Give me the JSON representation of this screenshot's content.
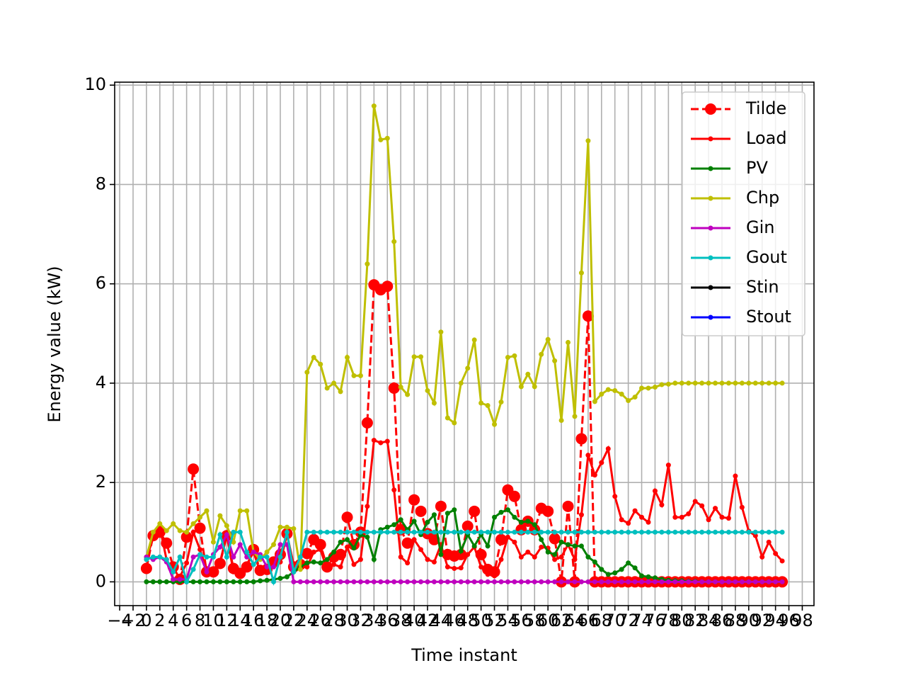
{
  "chart_data": {
    "type": "line",
    "xlabel": "Time instant",
    "ylabel": "Energy value (kW)",
    "x": [
      0,
      1,
      2,
      3,
      4,
      5,
      6,
      7,
      8,
      9,
      10,
      11,
      12,
      13,
      14,
      15,
      16,
      17,
      18,
      19,
      20,
      21,
      22,
      23,
      24,
      25,
      26,
      27,
      28,
      29,
      30,
      31,
      32,
      33,
      34,
      35,
      36,
      37,
      38,
      39,
      40,
      41,
      42,
      43,
      44,
      45,
      46,
      47,
      48,
      49,
      50,
      51,
      52,
      53,
      54,
      55,
      56,
      57,
      58,
      59,
      60,
      61,
      62,
      63,
      64,
      65,
      66,
      67,
      68,
      69,
      70,
      71,
      72,
      73,
      74,
      75,
      76,
      77,
      78,
      79,
      80,
      81,
      82,
      83,
      84,
      85,
      86,
      87,
      88,
      89,
      90,
      91,
      92,
      93,
      94,
      95
    ],
    "series": [
      {
        "name": "Tilde",
        "color": "#ff0000",
        "linestyle": "dashed",
        "marker_size": 8,
        "values": [
          0.27,
          0.93,
          1.0,
          0.78,
          0.3,
          0.05,
          0.9,
          2.27,
          1.08,
          0.2,
          0.2,
          0.37,
          0.93,
          0.27,
          0.17,
          0.3,
          0.65,
          0.23,
          0.25,
          0.4,
          0.55,
          0.97,
          0.3,
          0.35,
          0.57,
          0.85,
          0.75,
          0.3,
          0.5,
          0.55,
          1.3,
          0.75,
          1.0,
          3.2,
          5.98,
          5.88,
          5.95,
          3.9,
          1.05,
          0.78,
          1.65,
          1.42,
          0.97,
          0.85,
          1.52,
          0.55,
          0.52,
          0.55,
          1.12,
          1.42,
          0.55,
          0.25,
          0.2,
          0.85,
          1.85,
          1.72,
          1.05,
          1.22,
          1.05,
          1.48,
          1.42,
          0.87,
          0,
          1.52,
          0,
          2.88,
          5.35,
          0,
          0,
          0,
          0,
          0,
          0,
          0,
          0,
          0,
          0,
          0,
          0,
          0,
          0,
          0,
          0,
          0,
          0,
          0,
          0,
          0,
          0,
          0,
          0,
          0,
          0,
          0,
          0,
          0
        ]
      },
      {
        "name": "Load",
        "color": "#ff0000",
        "linestyle": "solid",
        "marker_size": 3.5,
        "values": [
          0.45,
          0.9,
          1.1,
          0.45,
          0.05,
          0.1,
          0.38,
          1.0,
          0.65,
          0.25,
          0.25,
          0.4,
          0.95,
          0.2,
          0.2,
          0.35,
          0.6,
          0.2,
          0.2,
          0.45,
          0.4,
          0.95,
          0.35,
          0.4,
          0.3,
          0.6,
          0.65,
          0.25,
          0.35,
          0.3,
          0.7,
          0.35,
          0.45,
          1.52,
          2.85,
          2.8,
          2.83,
          1.85,
          0.5,
          0.38,
          0.85,
          0.65,
          0.45,
          0.4,
          0.75,
          0.3,
          0.27,
          0.28,
          0.55,
          0.7,
          0.3,
          0.15,
          0.12,
          0.45,
          0.9,
          0.8,
          0.5,
          0.6,
          0.5,
          0.7,
          0.68,
          0.45,
          0.5,
          0.75,
          0.45,
          1.35,
          2.55,
          2.15,
          2.4,
          2.68,
          1.72,
          1.25,
          1.18,
          1.43,
          1.3,
          1.2,
          1.83,
          1.55,
          2.35,
          1.3,
          1.3,
          1.37,
          1.62,
          1.53,
          1.25,
          1.48,
          1.3,
          1.28,
          2.13,
          1.5,
          1.02,
          0.93,
          0.5,
          0.8,
          0.57,
          0.42
        ]
      },
      {
        "name": "PV",
        "color": "#008000",
        "linestyle": "solid",
        "marker_size": 3.5,
        "values": [
          0,
          0,
          0,
          0,
          0,
          0,
          0,
          0,
          0,
          0,
          0,
          0,
          0,
          0,
          0,
          0,
          0,
          0.02,
          0.03,
          0.05,
          0.07,
          0.1,
          0.2,
          0.3,
          0.38,
          0.4,
          0.38,
          0.45,
          0.6,
          0.8,
          0.85,
          0.68,
          0.95,
          0.9,
          0.45,
          1.05,
          1.1,
          1.15,
          1.25,
          1.05,
          1.22,
          0.95,
          1.2,
          1.35,
          0.55,
          1.38,
          1.45,
          0.62,
          0.95,
          0.72,
          0.95,
          0.72,
          1.3,
          1.4,
          1.45,
          1.3,
          1.2,
          1.22,
          1.15,
          0.85,
          0.6,
          0.55,
          0.8,
          0.75,
          0.72,
          0.72,
          0.5,
          0.4,
          0.25,
          0.15,
          0.18,
          0.25,
          0.38,
          0.28,
          0.12,
          0.1,
          0.08,
          0.05,
          0.03,
          0.02,
          0.02,
          0.01,
          0.01,
          0,
          0,
          0,
          0,
          0,
          0,
          0,
          0,
          0,
          0,
          0,
          0,
          0
        ]
      },
      {
        "name": "Chp",
        "color": "#bfbf00",
        "linestyle": "solid",
        "marker_size": 3.5,
        "values": [
          0.5,
          1.0,
          1.17,
          1.03,
          1.17,
          1.03,
          1.0,
          1.17,
          1.3,
          1.43,
          0.8,
          1.33,
          1.13,
          0.8,
          1.43,
          1.43,
          0.6,
          0.45,
          0.6,
          0.75,
          1.1,
          1.1,
          1.07,
          0.25,
          4.22,
          4.52,
          4.38,
          3.9,
          4.0,
          3.83,
          4.52,
          4.15,
          4.15,
          6.4,
          9.58,
          8.9,
          8.93,
          6.85,
          3.92,
          3.77,
          4.53,
          4.53,
          3.85,
          3.6,
          5.03,
          3.3,
          3.2,
          4.0,
          4.3,
          4.87,
          3.6,
          3.55,
          3.17,
          3.62,
          4.52,
          4.55,
          3.93,
          4.18,
          3.93,
          4.58,
          4.88,
          4.45,
          3.25,
          4.82,
          3.33,
          6.22,
          8.88,
          3.63,
          3.78,
          3.87,
          3.85,
          3.78,
          3.65,
          3.72,
          3.9,
          3.9,
          3.92,
          3.97,
          3.98,
          4.0,
          4.0,
          4.0,
          4.0,
          4.0,
          4.0,
          4.0,
          4.0,
          4.0,
          4.0,
          4.0,
          4.0,
          4.0,
          4.0,
          4.0,
          4.0,
          4.0
        ]
      },
      {
        "name": "Gin",
        "color": "#bf00bf",
        "linestyle": "solid",
        "marker_size": 3.5,
        "values": [
          0.5,
          0.45,
          0.5,
          0.4,
          0.05,
          0.05,
          0.05,
          0.5,
          0.55,
          0.2,
          0.55,
          0.7,
          0.95,
          0.5,
          0.75,
          0.5,
          0.6,
          0.55,
          0.3,
          0.3,
          0.75,
          0.75,
          0,
          0,
          0,
          0,
          0,
          0,
          0,
          0,
          0,
          0,
          0,
          0,
          0,
          0,
          0,
          0,
          0,
          0,
          0,
          0,
          0,
          0,
          0,
          0,
          0,
          0,
          0,
          0,
          0,
          0,
          0,
          0,
          0,
          0,
          0,
          0,
          0,
          0,
          0,
          0,
          0,
          0,
          0,
          0,
          0,
          0,
          0,
          0,
          0,
          0,
          0,
          0,
          0,
          0,
          0,
          0,
          0,
          0,
          0,
          0,
          0,
          0,
          0,
          0,
          0,
          0,
          0,
          0,
          0,
          0,
          0,
          0,
          0,
          0
        ]
      },
      {
        "name": "Gout",
        "color": "#00bfbf",
        "linestyle": "solid",
        "marker_size": 3.5,
        "values": [
          0.45,
          0.5,
          0.5,
          0.45,
          0.2,
          0.5,
          0,
          0.25,
          0.55,
          0.5,
          0.5,
          0.95,
          0.5,
          1.0,
          1.0,
          0.6,
          0.35,
          0.5,
          0.5,
          0,
          0.5,
          1.0,
          0.2,
          0.5,
          1,
          1,
          1,
          1,
          1,
          1,
          1,
          1,
          1,
          1,
          1,
          1,
          1,
          1,
          1,
          1,
          1,
          1,
          1,
          1,
          1,
          1,
          1,
          1,
          1,
          1,
          1,
          1,
          1,
          1,
          1,
          1,
          1,
          1,
          1,
          1,
          1,
          1,
          1,
          1,
          1,
          1,
          1,
          1,
          1,
          1,
          1,
          1,
          1,
          1,
          1,
          1,
          1,
          1,
          1,
          1,
          1,
          1,
          1,
          1,
          1,
          1,
          1,
          1,
          1,
          1,
          1,
          1,
          1,
          1,
          1,
          1
        ]
      },
      {
        "name": "Stin",
        "color": "#000000",
        "linestyle": "solid",
        "marker_size": 3.5,
        "values": [
          null,
          null,
          null,
          null,
          null,
          null,
          null,
          null,
          null,
          null,
          null,
          null,
          null,
          null,
          null,
          null,
          null,
          null,
          null,
          null,
          null,
          null,
          null,
          null,
          null,
          null,
          null,
          null,
          null,
          null,
          null,
          null,
          null,
          null,
          null,
          null,
          null,
          null,
          null,
          null,
          null,
          null,
          null,
          null,
          null,
          null,
          null,
          null,
          null,
          null,
          null,
          null,
          null,
          null,
          null,
          null,
          null,
          null,
          null,
          null,
          null,
          null,
          null,
          null,
          null,
          null,
          null,
          null,
          null,
          null,
          null,
          null,
          null,
          null,
          null,
          null,
          null,
          null,
          null,
          null,
          null,
          null,
          null,
          null,
          null,
          null,
          null,
          null,
          null,
          null,
          null,
          null,
          null,
          null,
          null,
          null
        ]
      },
      {
        "name": "Stout",
        "color": "#0000ff",
        "linestyle": "solid",
        "marker_size": 3.5,
        "values": [
          null,
          null,
          null,
          null,
          null,
          null,
          null,
          null,
          null,
          null,
          null,
          null,
          null,
          null,
          null,
          null,
          null,
          null,
          null,
          null,
          null,
          null,
          null,
          null,
          null,
          null,
          null,
          null,
          null,
          null,
          null,
          null,
          null,
          null,
          null,
          null,
          null,
          null,
          null,
          null,
          null,
          null,
          null,
          null,
          null,
          null,
          null,
          null,
          null,
          null,
          null,
          null,
          null,
          null,
          null,
          null,
          null,
          null,
          null,
          null,
          null,
          null,
          null,
          null,
          null,
          null,
          null,
          null,
          null,
          null,
          null,
          null,
          null,
          null,
          null,
          null,
          null,
          null,
          null,
          null,
          null,
          null,
          null,
          null,
          null,
          null,
          null,
          null,
          null,
          null,
          null,
          null,
          null,
          null,
          null,
          null
        ]
      }
    ],
    "xlim": [
      -4.75,
      99.75
    ],
    "ylim": [
      -0.479,
      10.06
    ],
    "xticks": [
      {
        "value": -4,
        "label": "−4"
      },
      {
        "value": -2,
        "label": "−2"
      },
      0,
      2,
      4,
      6,
      8,
      10,
      12,
      14,
      16,
      18,
      20,
      22,
      24,
      26,
      28,
      30,
      32,
      34,
      36,
      38,
      40,
      42,
      44,
      46,
      48,
      50,
      52,
      54,
      56,
      58,
      60,
      62,
      64,
      66,
      68,
      70,
      72,
      74,
      76,
      78,
      80,
      82,
      84,
      86,
      88,
      90,
      92,
      94,
      96,
      98
    ],
    "yticks": [
      0,
      2,
      4,
      6,
      8,
      10
    ],
    "grid": true,
    "legend": "upper right"
  }
}
